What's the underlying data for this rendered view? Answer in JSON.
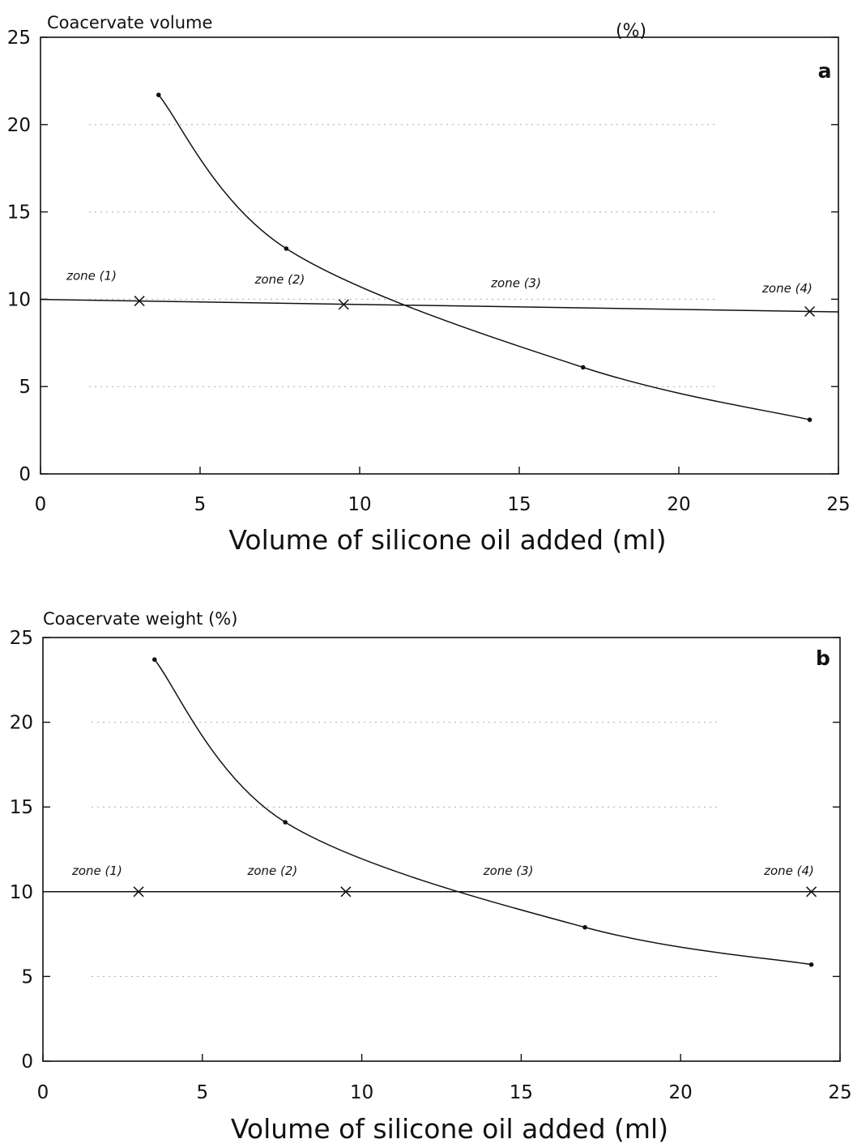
{
  "colors": {
    "ink": "#111111",
    "grid": "#aaaaaa",
    "background": "#ffffff"
  },
  "chart_data": [
    {
      "type": "line",
      "panel_label": "a",
      "ylabel": "Coacervate volume",
      "ylabel_unit": "(%)",
      "xlabel": "Volume of silicone oil added (ml)",
      "xlim": [
        0,
        25
      ],
      "ylim": [
        0,
        25
      ],
      "xticks": [
        "0",
        "5",
        "10",
        "15",
        "20",
        "25"
      ],
      "yticks": [
        "0",
        "5",
        "10",
        "15",
        "20",
        "25"
      ],
      "grid": "dotted-horizontal",
      "series": [
        {
          "marker": "dot",
          "x": [
            3.7,
            7.7,
            17,
            24.1
          ],
          "y": [
            21.7,
            12.9,
            6.1,
            3.1
          ]
        },
        {
          "marker": "x",
          "x": [
            3.1,
            9.5,
            24.1
          ],
          "y": [
            9.9,
            9.7,
            9.3
          ]
        }
      ],
      "annotations": [
        {
          "text": "zone (1)",
          "x": 1.6,
          "y": 11.1
        },
        {
          "text": "zone (2)",
          "x": 7.5,
          "y": 10.9
        },
        {
          "text": "zone (3)",
          "x": 14.9,
          "y": 10.7
        },
        {
          "text": "zone (4)",
          "x": 23.4,
          "y": 10.4
        }
      ]
    },
    {
      "type": "line",
      "panel_label": "b",
      "ylabel": "Coacervate weight (%)",
      "ylabel_unit": "",
      "xlabel": "Volume of silicone oil added (ml)",
      "xlim": [
        0,
        25
      ],
      "ylim": [
        0,
        25
      ],
      "xticks": [
        "0",
        "5",
        "10",
        "15",
        "20",
        "25"
      ],
      "yticks": [
        "0",
        "5",
        "10",
        "15",
        "20",
        "25"
      ],
      "grid": "dotted-horizontal",
      "series": [
        {
          "marker": "dot",
          "x": [
            3.5,
            7.6,
            17,
            24.1
          ],
          "y": [
            23.7,
            14.1,
            7.9,
            5.7
          ]
        },
        {
          "marker": "x",
          "x": [
            3,
            9.5,
            24.1
          ],
          "y": [
            10,
            10,
            10
          ]
        }
      ],
      "annotations": [
        {
          "text": "zone (1)",
          "x": 1.7,
          "y": 11
        },
        {
          "text": "zone (2)",
          "x": 7.2,
          "y": 11
        },
        {
          "text": "zone (3)",
          "x": 14.6,
          "y": 11
        },
        {
          "text": "zone (4)",
          "x": 23.4,
          "y": 11
        }
      ]
    }
  ]
}
